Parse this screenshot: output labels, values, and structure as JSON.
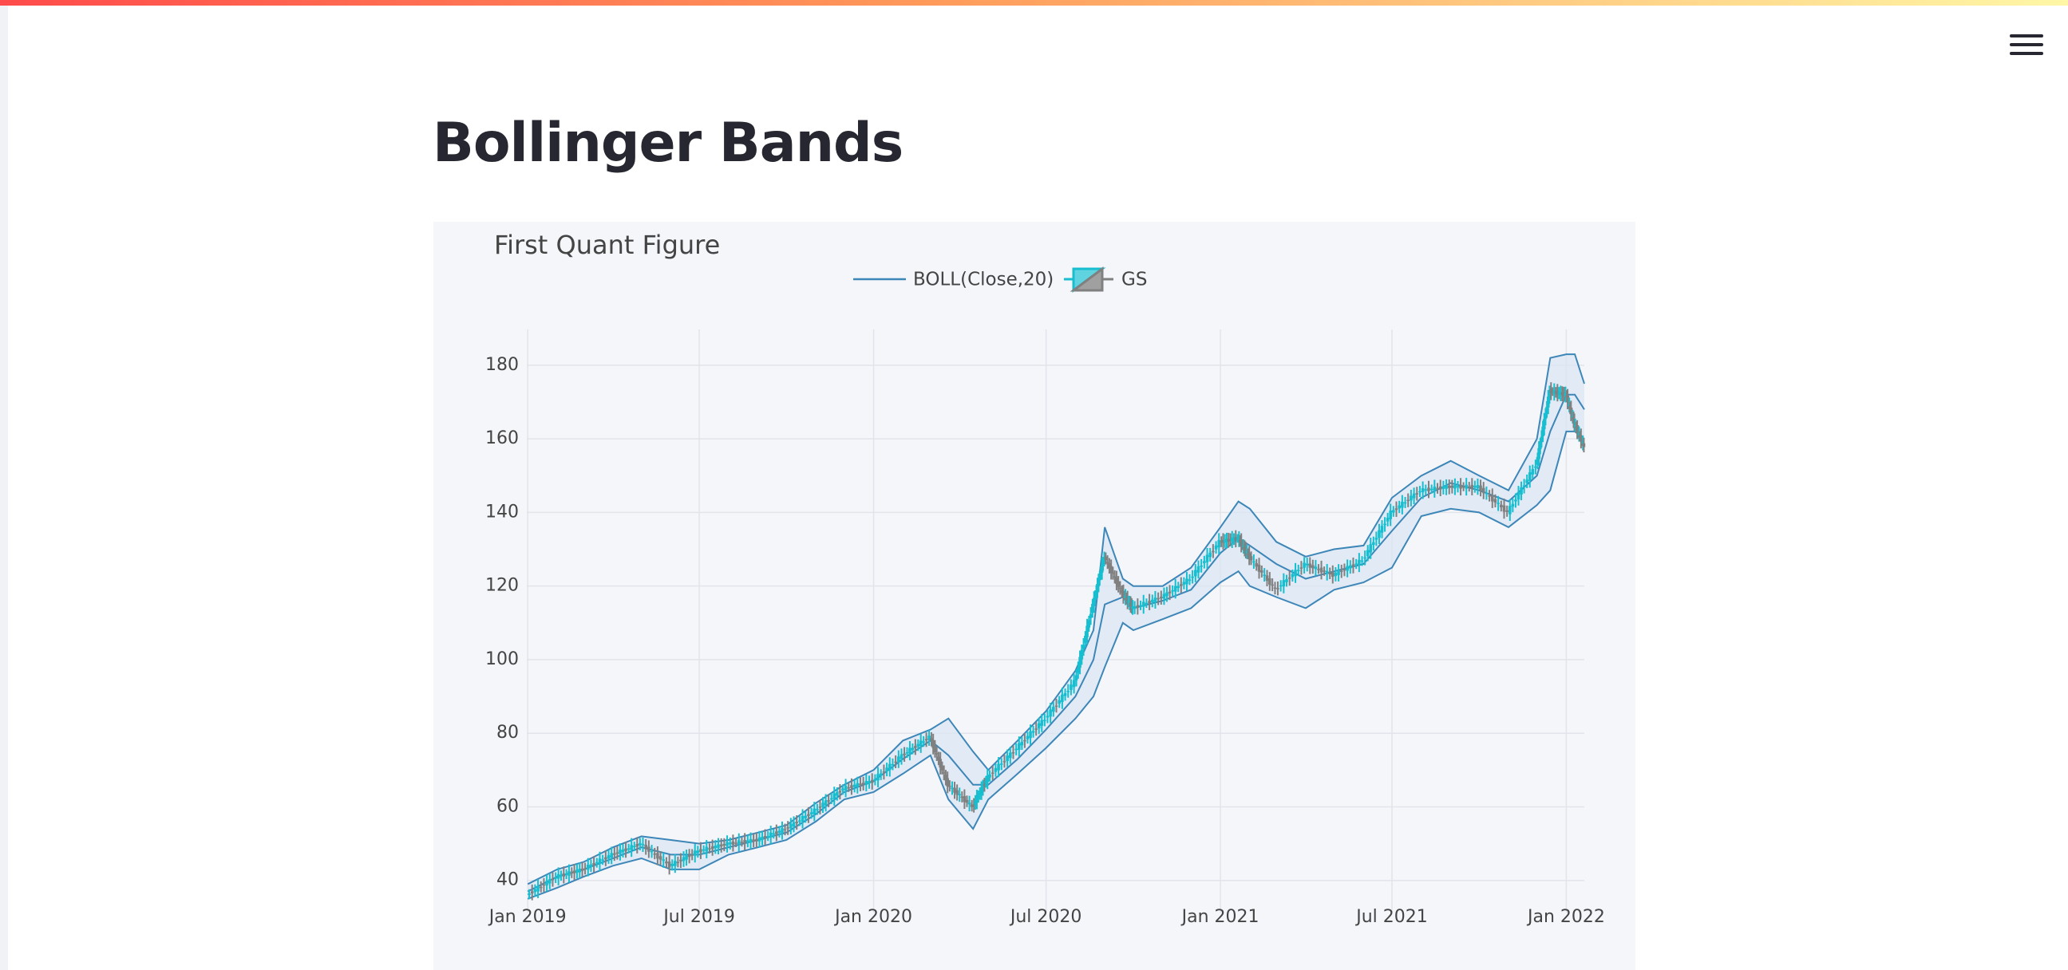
{
  "page": {
    "title": "Bollinger Bands",
    "menu_icon": "hamburger-menu-icon"
  },
  "colors": {
    "top_bar_start": "#ff4b4b",
    "top_bar_end": "#fff7a6",
    "plot_background": "#f5f6fa",
    "band_line": "#3d86b8",
    "band_fill": "#dbe6f3",
    "candle_increasing": "#17becf",
    "candle_decreasing": "#808080",
    "grid": "#e1e4ea"
  },
  "chart_data": {
    "type": "line",
    "title": "First Quant Figure",
    "legend": [
      {
        "label": "BOLL(Close,20)",
        "symbol": "line"
      },
      {
        "label": "GS",
        "symbol": "candlestick"
      }
    ],
    "legend_position": "top-center",
    "grid": true,
    "x_type": "date",
    "xlim": [
      "2018-12-31",
      "2022-01-20"
    ],
    "ylim": [
      33,
      188
    ],
    "x_ticks": [
      {
        "date": "2019-01-01",
        "label": "Jan 2019"
      },
      {
        "date": "2019-07-01",
        "label": "Jul 2019"
      },
      {
        "date": "2020-01-01",
        "label": "Jan 2020"
      },
      {
        "date": "2020-07-01",
        "label": "Jul 2020"
      },
      {
        "date": "2021-01-01",
        "label": "Jan 2021"
      },
      {
        "date": "2021-07-01",
        "label": "Jul 2021"
      },
      {
        "date": "2022-01-01",
        "label": "Jan 2022"
      }
    ],
    "y_ticks": [
      40,
      60,
      80,
      100,
      120,
      140,
      160,
      180
    ],
    "series": [
      {
        "name": "GS",
        "x": [
          "2019-01-01",
          "2019-02-01",
          "2019-03-01",
          "2019-04-01",
          "2019-05-01",
          "2019-06-01",
          "2019-07-01",
          "2019-08-01",
          "2019-09-01",
          "2019-10-01",
          "2019-11-01",
          "2019-12-01",
          "2020-01-01",
          "2020-02-01",
          "2020-03-01",
          "2020-03-20",
          "2020-04-15",
          "2020-05-01",
          "2020-06-01",
          "2020-07-01",
          "2020-08-01",
          "2020-08-20",
          "2020-09-01",
          "2020-09-20",
          "2020-10-01",
          "2020-11-01",
          "2020-12-01",
          "2021-01-01",
          "2021-01-20",
          "2021-02-01",
          "2021-03-01",
          "2021-04-01",
          "2021-05-01",
          "2021-06-01",
          "2021-07-01",
          "2021-08-01",
          "2021-09-01",
          "2021-10-01",
          "2021-11-01",
          "2021-12-01",
          "2021-12-15",
          "2022-01-01",
          "2022-01-10",
          "2022-01-20"
        ],
        "values": [
          36,
          41,
          43,
          47,
          50,
          44,
          48,
          50,
          51,
          54,
          59,
          65,
          67,
          74,
          79,
          66,
          60,
          68,
          76,
          84,
          94,
          115,
          128,
          118,
          114,
          117,
          122,
          132,
          133,
          128,
          119,
          126,
          123,
          127,
          140,
          146,
          147,
          147,
          140,
          153,
          173,
          172,
          164,
          158
        ]
      },
      {
        "name": "BOLL(Close,20)",
        "x": [
          "2019-01-01",
          "2019-02-01",
          "2019-03-01",
          "2019-04-01",
          "2019-05-01",
          "2019-06-01",
          "2019-07-01",
          "2019-08-01",
          "2019-09-01",
          "2019-10-01",
          "2019-11-01",
          "2019-12-01",
          "2020-01-01",
          "2020-02-01",
          "2020-03-01",
          "2020-03-20",
          "2020-04-15",
          "2020-05-01",
          "2020-06-01",
          "2020-07-01",
          "2020-08-01",
          "2020-08-20",
          "2020-09-01",
          "2020-09-20",
          "2020-10-01",
          "2020-11-01",
          "2020-12-01",
          "2021-01-01",
          "2021-01-20",
          "2021-02-01",
          "2021-03-01",
          "2021-04-01",
          "2021-05-01",
          "2021-06-01",
          "2021-07-01",
          "2021-08-01",
          "2021-09-01",
          "2021-10-01",
          "2021-11-01",
          "2021-12-01",
          "2021-12-15",
          "2022-01-01",
          "2022-01-10",
          "2022-01-20"
        ],
        "upper": [
          39,
          43,
          45,
          49,
          52,
          51,
          50,
          51,
          53,
          55,
          61,
          66,
          70,
          78,
          81,
          84,
          75,
          70,
          78,
          86,
          97,
          108,
          136,
          122,
          120,
          120,
          125,
          136,
          143,
          141,
          132,
          128,
          130,
          131,
          144,
          150,
          154,
          150,
          146,
          160,
          182,
          183,
          183,
          175
        ],
        "middle": [
          37,
          41,
          43,
          46,
          49,
          47,
          47,
          49,
          51,
          53,
          58,
          64,
          67,
          73,
          78,
          74,
          66,
          66,
          73,
          81,
          90,
          100,
          115,
          117,
          114,
          116,
          119,
          129,
          133,
          131,
          126,
          122,
          124,
          126,
          135,
          144,
          148,
          146,
          143,
          150,
          162,
          172,
          172,
          168
        ],
        "lower": [
          35,
          38,
          41,
          44,
          46,
          43,
          43,
          47,
          49,
          51,
          56,
          62,
          64,
          69,
          74,
          62,
          54,
          62,
          69,
          76,
          84,
          90,
          98,
          110,
          108,
          111,
          114,
          121,
          124,
          120,
          117,
          114,
          119,
          121,
          125,
          139,
          141,
          140,
          136,
          142,
          146,
          162,
          162,
          160
        ]
      }
    ]
  }
}
